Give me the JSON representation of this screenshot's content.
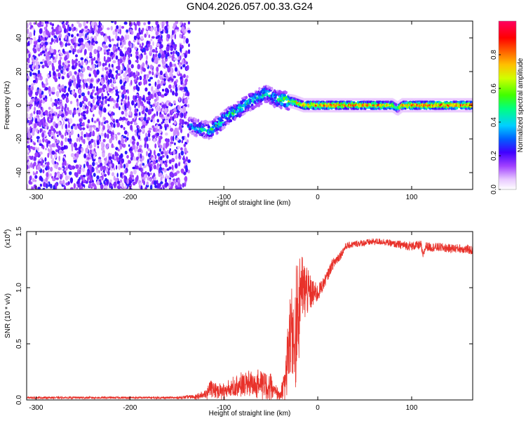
{
  "figure": {
    "title": "GN04.2026.057.00.33.G24"
  },
  "chart_data": [
    {
      "type": "heatmap",
      "xlabel": "Height of straight line (km)",
      "ylabel": "Frequency (Hz)",
      "xlim": [
        -310,
        165
      ],
      "ylim": [
        -50,
        50
      ],
      "xticks": [
        -300,
        -200,
        -100,
        0,
        100
      ],
      "xtick_labels": [
        "-300",
        "-200",
        "-100",
        "0",
        "100"
      ],
      "yticks": [
        -40,
        -20,
        0,
        20,
        40
      ],
      "ytick_labels": [
        "-40",
        "-20",
        "0",
        "20",
        "40"
      ],
      "colorbar": {
        "label": "Normalized spectral amplitude",
        "range": [
          0,
          1
        ],
        "ticks": [
          0.0,
          0.2,
          0.4,
          0.6,
          0.8
        ],
        "tick_labels": [
          "0.0",
          "0.2",
          "0.4",
          "0.6",
          "0.8"
        ],
        "colormap": [
          "#ffffff",
          "#e0b0ff",
          "#8000ff",
          "#0000ff",
          "#00ffff",
          "#00ff00",
          "#ffff00",
          "#ff8000",
          "#ff0000",
          "#ff0080"
        ]
      },
      "noise_region": {
        "x": [
          -310,
          -137
        ],
        "level": 0.2
      },
      "ridge": {
        "x": [
          -137,
          -125,
          -115,
          -105,
          -95,
          -85,
          -75,
          -65,
          -55,
          -45,
          -35,
          -25,
          -15,
          -5,
          0,
          20,
          40,
          60,
          80,
          85,
          90,
          110,
          130,
          150,
          165
        ],
        "y": [
          -12,
          -14,
          -15,
          -11,
          -6,
          -3,
          1,
          4,
          7,
          4,
          3,
          2,
          0,
          0,
          0,
          0,
          0,
          0,
          0,
          -2,
          0,
          0,
          0,
          0,
          0
        ],
        "amplitude": [
          0.3,
          0.4,
          0.45,
          0.45,
          0.45,
          0.45,
          0.45,
          0.45,
          0.45,
          0.4,
          0.6,
          0.7,
          0.8,
          0.85,
          0.9,
          0.88,
          0.85,
          0.85,
          0.8,
          0.5,
          0.85,
          0.9,
          0.9,
          0.9,
          0.9
        ]
      }
    },
    {
      "type": "line",
      "xlabel": "Height of straight line (km)",
      "ylabel": "SNR (10 * v/v)",
      "y_multiplier": "(x10",
      "y_multiplier_exp": "4",
      "y_multiplier_close": ")",
      "xlim": [
        -310,
        165
      ],
      "ylim": [
        0,
        1.5
      ],
      "xticks": [
        -300,
        -200,
        -100,
        0,
        100
      ],
      "xtick_labels": [
        "-300",
        "-200",
        "-100",
        "0",
        "100"
      ],
      "yticks": [
        0,
        0.5,
        1.0,
        1.5
      ],
      "ytick_labels": [
        "0.0",
        "0.5",
        "1.0",
        "1.5"
      ],
      "series": [
        {
          "color": "#e8312a",
          "x": [
            -310,
            -250,
            -200,
            -150,
            -130,
            -120,
            -115,
            -110,
            -100,
            -90,
            -80,
            -70,
            -60,
            -50,
            -45,
            -40,
            -35,
            -32,
            -30,
            -28,
            -25,
            -22,
            -20,
            -18,
            -15,
            -12,
            -10,
            -5,
            0,
            5,
            10,
            15,
            20,
            25,
            30,
            40,
            50,
            60,
            70,
            80,
            90,
            100,
            110,
            112,
            115,
            120,
            130,
            140,
            150,
            160,
            165
          ],
          "y": [
            0.02,
            0.02,
            0.02,
            0.02,
            0.03,
            0.06,
            0.12,
            0.1,
            0.09,
            0.12,
            0.15,
            0.17,
            0.18,
            0.15,
            0.09,
            0.05,
            0.2,
            0.6,
            0.55,
            0.7,
            0.45,
            0.9,
            0.8,
            1.05,
            0.95,
            1.0,
            0.95,
            0.95,
            0.95,
            1.02,
            1.1,
            1.2,
            1.25,
            1.3,
            1.37,
            1.39,
            1.4,
            1.41,
            1.41,
            1.39,
            1.38,
            1.37,
            1.38,
            1.28,
            1.37,
            1.36,
            1.36,
            1.35,
            1.35,
            1.34,
            1.33
          ],
          "noise": [
            0.01,
            0.01,
            0.01,
            0.01,
            0.02,
            0.05,
            0.06,
            0.07,
            0.08,
            0.09,
            0.1,
            0.11,
            0.12,
            0.12,
            0.08,
            0.05,
            0.25,
            0.3,
            0.3,
            0.35,
            0.35,
            0.4,
            0.4,
            0.3,
            0.3,
            0.25,
            0.2,
            0.12,
            0.08,
            0.06,
            0.05,
            0.05,
            0.05,
            0.04,
            0.03,
            0.03,
            0.03,
            0.03,
            0.03,
            0.03,
            0.04,
            0.04,
            0.04,
            0.03,
            0.04,
            0.04,
            0.04,
            0.04,
            0.04,
            0.04,
            0.04
          ]
        }
      ]
    }
  ]
}
